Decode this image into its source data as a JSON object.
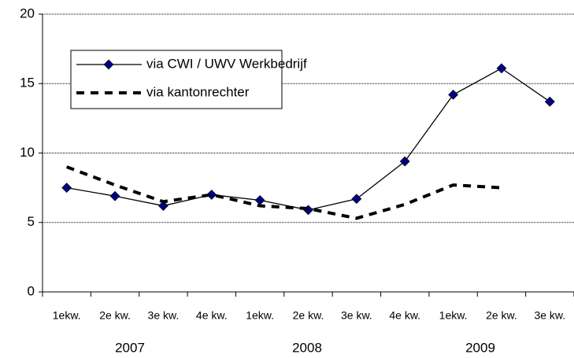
{
  "chart_data": {
    "type": "line",
    "categories": [
      "1ekw.",
      "2e kw.",
      "3e kw.",
      "4e kw.",
      "1ekw.",
      "2e kw.",
      "3e kw.",
      "4e kw.",
      "1ekw.",
      "2e kw.",
      "3e kw."
    ],
    "groups": [
      "2007",
      "2008",
      "2009"
    ],
    "series": [
      {
        "name": "via CWI / UWV Werkbedrijf",
        "color": "#000000",
        "marker_color": "#000080",
        "style": "solid",
        "values": [
          7.5,
          6.9,
          6.2,
          7.0,
          6.6,
          5.9,
          6.7,
          9.4,
          14.2,
          16.1,
          13.7
        ]
      },
      {
        "name": "via kantonrechter",
        "color": "#000000",
        "style": "dashed",
        "values": [
          9.0,
          7.7,
          6.5,
          7.0,
          6.2,
          6.0,
          5.3,
          6.3,
          7.7,
          7.5,
          null
        ]
      }
    ],
    "ylim": [
      0,
      20
    ],
    "yticks": [
      0,
      5,
      10,
      15,
      20
    ],
    "grid": true
  }
}
